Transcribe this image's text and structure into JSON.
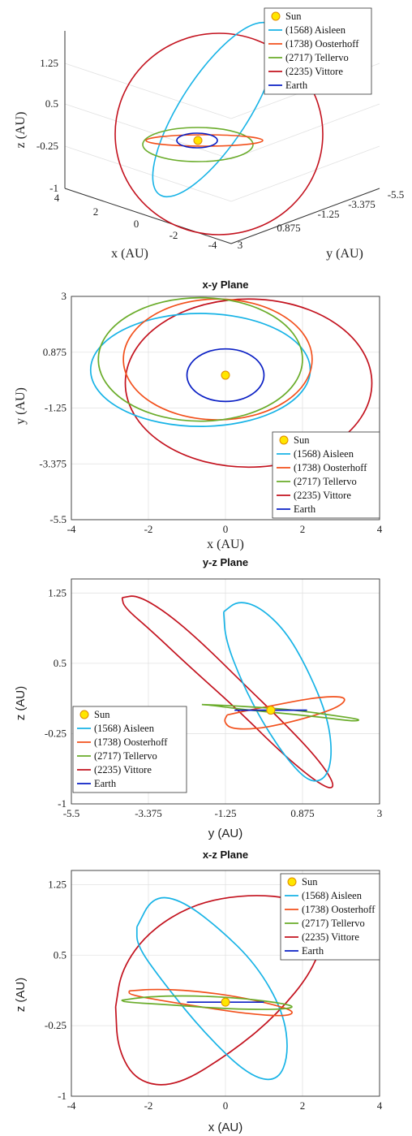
{
  "colors": {
    "sun": "#ffe600",
    "sun_edge": "#e08a00",
    "aisleen": "#17b3e6",
    "oosterhoff": "#f2501c",
    "tellervo": "#6aac2a",
    "vittore": "#c3121e",
    "earth": "#0a1fc4",
    "grid": "#e2e2e2",
    "axis": "#333333"
  },
  "legend": {
    "sun": "Sun",
    "aisleen": "(1568) Aisleen",
    "oosterhoff": "(1738) Oosterhoff",
    "tellervo": "(2717) Tellervo",
    "vittore": "(2235) Vittore",
    "earth": "Earth"
  },
  "chart_data": [
    {
      "type": "line",
      "projection": "3d",
      "title": "",
      "xlabel": "x (AU)",
      "ylabel": "y (AU)",
      "zlabel": "z (AU)",
      "x_ticks": [
        "4",
        "2",
        "0",
        "-2",
        "-4"
      ],
      "y_ticks": [
        "3",
        "0.875",
        "-1.25",
        "-3.375",
        "-5.5"
      ],
      "z_ticks": [
        "1.25",
        "0.5",
        "-0.25",
        "-1"
      ],
      "grid": true,
      "legend_position": "top-right",
      "series": [
        {
          "key": "aisleen",
          "name": "(1568) Aisleen"
        },
        {
          "key": "oosterhoff",
          "name": "(1738) Oosterhoff"
        },
        {
          "key": "tellervo",
          "name": "(2717) Tellervo"
        },
        {
          "key": "vittore",
          "name": "(2235) Vittore"
        },
        {
          "key": "earth",
          "name": "Earth"
        }
      ]
    },
    {
      "type": "line",
      "title": "x-y Plane",
      "xlabel": "x (AU)",
      "ylabel": "y (AU)",
      "xlim": [
        -4,
        4
      ],
      "ylim": [
        -5.5,
        3
      ],
      "x_ticks": [
        "-4",
        "-2",
        "0",
        "2",
        "4"
      ],
      "y_ticks": [
        "3",
        "0.875",
        "-1.25",
        "-3.375",
        "-5.5"
      ],
      "grid": true,
      "legend_position": "bottom-right",
      "sun": {
        "x": 0,
        "y": 0
      },
      "series": [
        {
          "key": "aisleen",
          "name": "(1568) Aisleen",
          "center": [
            -0.65,
            0.2
          ],
          "semi_axes": [
            2.85,
            2.15
          ],
          "rotation_deg": 0
        },
        {
          "key": "oosterhoff",
          "name": "(1738) Oosterhoff",
          "center": [
            -0.2,
            0.6
          ],
          "semi_axes": [
            2.45,
            2.3
          ],
          "rotation_deg": 0
        },
        {
          "key": "tellervo",
          "name": "(2717) Tellervo",
          "center": [
            -0.65,
            0.6
          ],
          "semi_axes": [
            2.65,
            2.35
          ],
          "rotation_deg": 0
        },
        {
          "key": "vittore",
          "name": "(2235) Vittore",
          "center": [
            0.6,
            -0.3
          ],
          "semi_axes": [
            3.2,
            3.2
          ],
          "rotation_deg": 0
        },
        {
          "key": "earth",
          "name": "Earth",
          "center": [
            0,
            0
          ],
          "semi_axes": [
            1.0,
            1.0
          ],
          "rotation_deg": 0
        }
      ]
    },
    {
      "type": "line",
      "title": "y-z Plane",
      "xlabel": "y (AU)",
      "ylabel": "z (AU)",
      "xlim": [
        -5.5,
        3
      ],
      "ylim": [
        -1,
        1.4
      ],
      "x_ticks": [
        "-5.5",
        "-3.375",
        "-1.25",
        "0.875",
        "3"
      ],
      "y_ticks": [
        "1.25",
        "0.5",
        "-0.25",
        "-1"
      ],
      "grid": true,
      "legend_position": "bottom-left",
      "sun": {
        "x": 0,
        "y": 0
      },
      "series": [
        {
          "key": "aisleen",
          "name": "(1568) Aisleen",
          "polyline": [
            [
              -1.3,
              1.05
            ],
            [
              -0.9,
              1.17
            ],
            [
              -0.3,
              1.1
            ],
            [
              0.4,
              0.85
            ],
            [
              1.0,
              0.45
            ],
            [
              1.55,
              -0.05
            ],
            [
              1.7,
              -0.45
            ],
            [
              1.55,
              -0.72
            ],
            [
              1.1,
              -0.78
            ],
            [
              0.5,
              -0.55
            ],
            [
              -0.2,
              -0.15
            ],
            [
              -0.8,
              0.3
            ],
            [
              -1.25,
              0.75
            ],
            [
              -1.3,
              1.05
            ]
          ]
        },
        {
          "key": "oosterhoff",
          "name": "(1738) Oosterhoff",
          "polyline": [
            [
              -1.2,
              -0.05
            ],
            [
              -0.6,
              0.0
            ],
            [
              0.2,
              0.06
            ],
            [
              1.0,
              0.12
            ],
            [
              1.7,
              0.15
            ],
            [
              2.1,
              0.13
            ],
            [
              1.9,
              0.04
            ],
            [
              1.2,
              -0.06
            ],
            [
              0.3,
              -0.15
            ],
            [
              -0.4,
              -0.2
            ],
            [
              -1.1,
              -0.2
            ],
            [
              -1.3,
              -0.12
            ],
            [
              -1.2,
              -0.05
            ]
          ]
        },
        {
          "key": "tellervo",
          "name": "(2717) Tellervo",
          "polyline": [
            [
              -1.9,
              0.06
            ],
            [
              -1.2,
              0.05
            ],
            [
              -0.3,
              0.03
            ],
            [
              0.7,
              0.0
            ],
            [
              1.8,
              -0.06
            ],
            [
              2.5,
              -0.1
            ],
            [
              2.3,
              -0.12
            ],
            [
              1.5,
              -0.08
            ],
            [
              0.5,
              -0.04
            ],
            [
              -0.6,
              0.0
            ],
            [
              -1.6,
              0.05
            ],
            [
              -1.9,
              0.06
            ]
          ]
        },
        {
          "key": "vittore",
          "name": "(2235) Vittore",
          "polyline": [
            [
              -4.1,
              1.2
            ],
            [
              -3.7,
              1.23
            ],
            [
              -2.9,
              1.05
            ],
            [
              -1.9,
              0.72
            ],
            [
              -0.8,
              0.3
            ],
            [
              0.4,
              -0.15
            ],
            [
              1.3,
              -0.52
            ],
            [
              1.75,
              -0.78
            ],
            [
              1.65,
              -0.85
            ],
            [
              1.1,
              -0.72
            ],
            [
              0.2,
              -0.42
            ],
            [
              -0.9,
              0.0
            ],
            [
              -2.2,
              0.45
            ],
            [
              -3.3,
              0.85
            ],
            [
              -4.05,
              1.1
            ],
            [
              -4.1,
              1.2
            ]
          ]
        },
        {
          "key": "earth",
          "name": "Earth",
          "polyline": [
            [
              -1.0,
              0.0
            ],
            [
              -0.3,
              0.0
            ],
            [
              0.3,
              0.0
            ],
            [
              1.0,
              0.0
            ]
          ]
        }
      ]
    },
    {
      "type": "line",
      "title": "x-z Plane",
      "xlabel": "x (AU)",
      "ylabel": "z (AU)",
      "xlim": [
        -4,
        4
      ],
      "ylim": [
        -1,
        1.4
      ],
      "x_ticks": [
        "-4",
        "-2",
        "0",
        "2",
        "4"
      ],
      "y_ticks": [
        "1.25",
        "0.5",
        "-0.25",
        "-1"
      ],
      "grid": true,
      "legend_position": "top-right",
      "sun": {
        "x": 0,
        "y": 0
      },
      "series": [
        {
          "key": "aisleen",
          "name": "(1568) Aisleen",
          "polyline": [
            [
              -2.3,
              0.8
            ],
            [
              -1.9,
              1.12
            ],
            [
              -1.2,
              1.1
            ],
            [
              -0.2,
              0.8
            ],
            [
              0.8,
              0.4
            ],
            [
              1.5,
              -0.1
            ],
            [
              1.65,
              -0.55
            ],
            [
              1.35,
              -0.85
            ],
            [
              0.6,
              -0.78
            ],
            [
              -0.5,
              -0.35
            ],
            [
              -1.6,
              0.2
            ],
            [
              -2.3,
              0.6
            ],
            [
              -2.3,
              0.8
            ]
          ]
        },
        {
          "key": "oosterhoff",
          "name": "(1738) Oosterhoff",
          "polyline": [
            [
              -2.5,
              0.12
            ],
            [
              -1.8,
              0.14
            ],
            [
              -0.8,
              0.12
            ],
            [
              0.3,
              0.06
            ],
            [
              1.3,
              -0.03
            ],
            [
              1.8,
              -0.1
            ],
            [
              1.6,
              -0.15
            ],
            [
              0.7,
              -0.13
            ],
            [
              -0.5,
              -0.06
            ],
            [
              -1.7,
              0.02
            ],
            [
              -2.5,
              0.08
            ],
            [
              -2.5,
              0.12
            ]
          ]
        },
        {
          "key": "tellervo",
          "name": "(2717) Tellervo",
          "polyline": [
            [
              -2.7,
              0.02
            ],
            [
              -2.0,
              0.06
            ],
            [
              -0.8,
              0.07
            ],
            [
              0.5,
              0.04
            ],
            [
              1.6,
              -0.02
            ],
            [
              1.8,
              -0.06
            ],
            [
              1.2,
              -0.08
            ],
            [
              0.0,
              -0.07
            ],
            [
              -1.4,
              -0.03
            ],
            [
              -2.6,
              0.0
            ],
            [
              -2.7,
              0.02
            ]
          ]
        },
        {
          "key": "vittore",
          "name": "(2235) Vittore",
          "polyline": [
            [
              -2.85,
              -0.05
            ],
            [
              -2.7,
              0.35
            ],
            [
              -2.0,
              0.75
            ],
            [
              -0.8,
              1.05
            ],
            [
              0.6,
              1.15
            ],
            [
              1.9,
              1.1
            ],
            [
              2.6,
              0.8
            ],
            [
              2.3,
              0.35
            ],
            [
              1.3,
              -0.15
            ],
            [
              0.1,
              -0.55
            ],
            [
              -1.3,
              -0.9
            ],
            [
              -2.3,
              -0.85
            ],
            [
              -2.8,
              -0.5
            ],
            [
              -2.85,
              -0.05
            ]
          ]
        },
        {
          "key": "earth",
          "name": "Earth",
          "polyline": [
            [
              -1.0,
              0.0
            ],
            [
              -0.3,
              0.0
            ],
            [
              0.3,
              0.0
            ],
            [
              1.0,
              0.0
            ]
          ]
        }
      ]
    }
  ]
}
